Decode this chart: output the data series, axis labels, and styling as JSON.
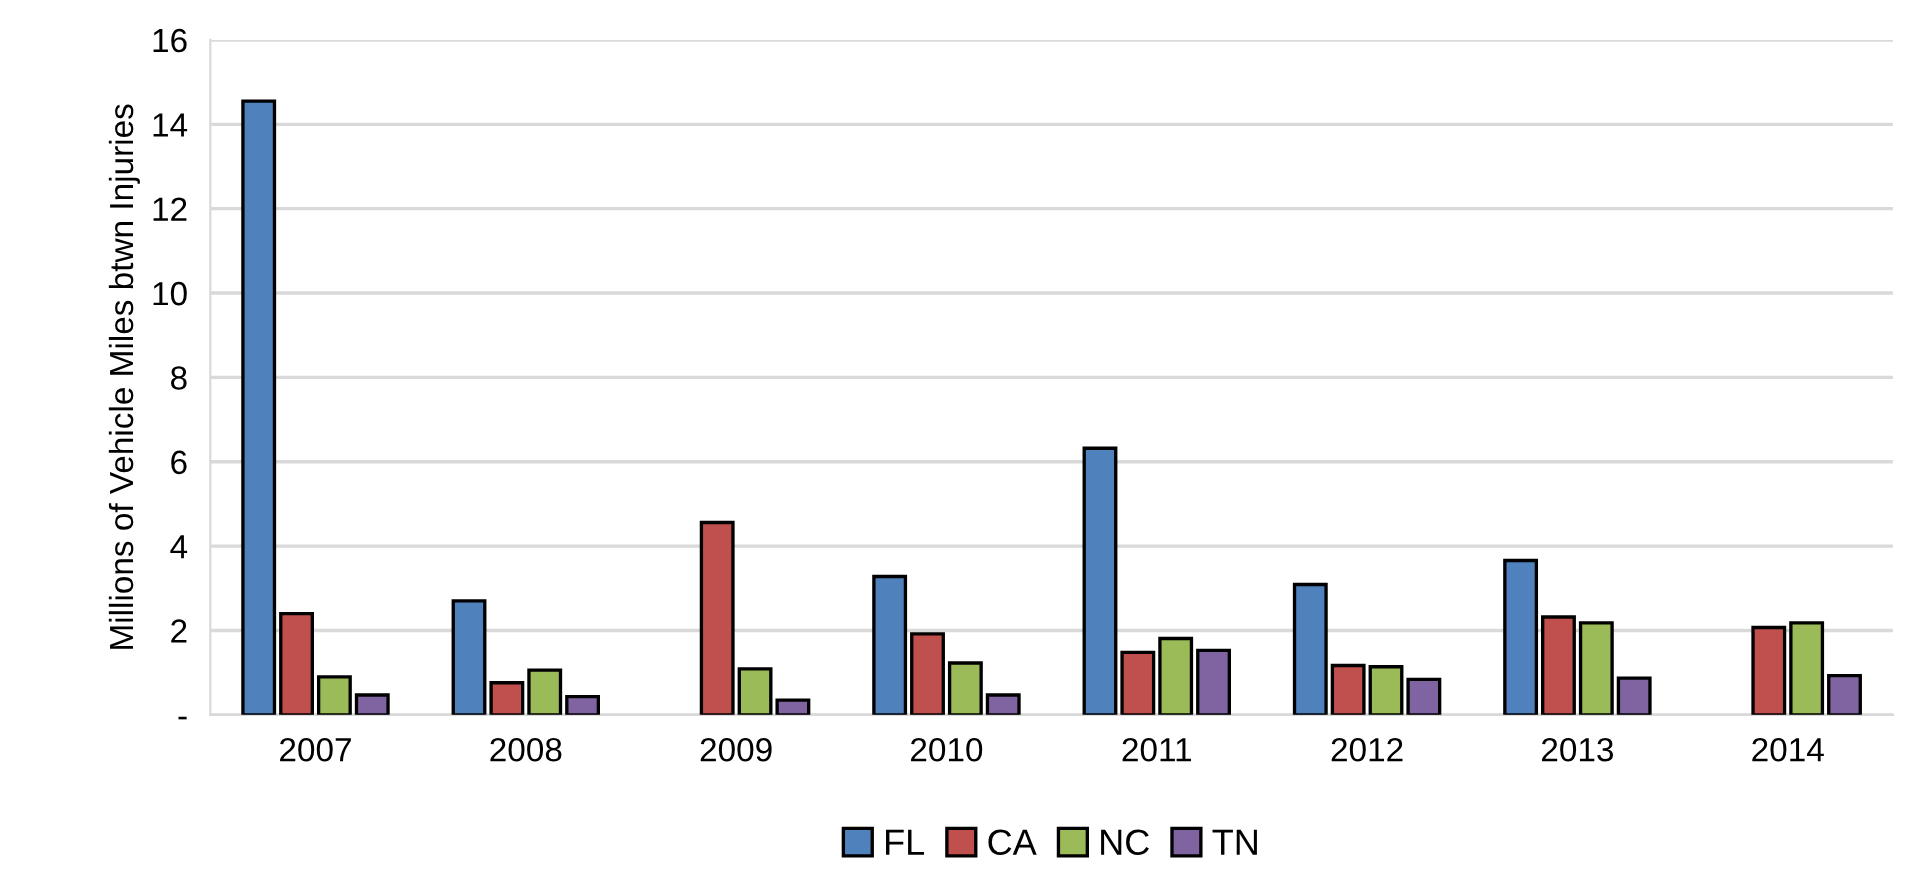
{
  "chart_data": {
    "type": "bar",
    "ylabel": "Millions of Vehicle Miles btwn Injuries",
    "categories": [
      "2007",
      "2008",
      "2009",
      "2010",
      "2011",
      "2012",
      "2013",
      "2014"
    ],
    "series": [
      {
        "name": "FL",
        "color": "#4f81bd",
        "values": [
          14.55,
          2.7,
          null,
          3.28,
          6.32,
          3.09,
          3.66,
          null
        ]
      },
      {
        "name": "CA",
        "color": "#c0504d",
        "values": [
          2.4,
          0.76,
          4.56,
          1.92,
          1.48,
          1.17,
          2.32,
          2.07
        ]
      },
      {
        "name": "NC",
        "color": "#9bbb59",
        "values": [
          0.9,
          1.06,
          1.09,
          1.23,
          1.81,
          1.14,
          2.18,
          2.18
        ]
      },
      {
        "name": "TN",
        "color": "#8064a2",
        "values": [
          0.47,
          0.43,
          0.35,
          0.47,
          1.53,
          0.84,
          0.87,
          0.93
        ]
      }
    ],
    "ylim": [
      0,
      16
    ],
    "yticks": [
      {
        "value": 0,
        "label": "-"
      },
      2,
      4,
      6,
      8,
      10,
      12,
      14,
      16
    ],
    "grid": "y",
    "legend": "bottom"
  }
}
